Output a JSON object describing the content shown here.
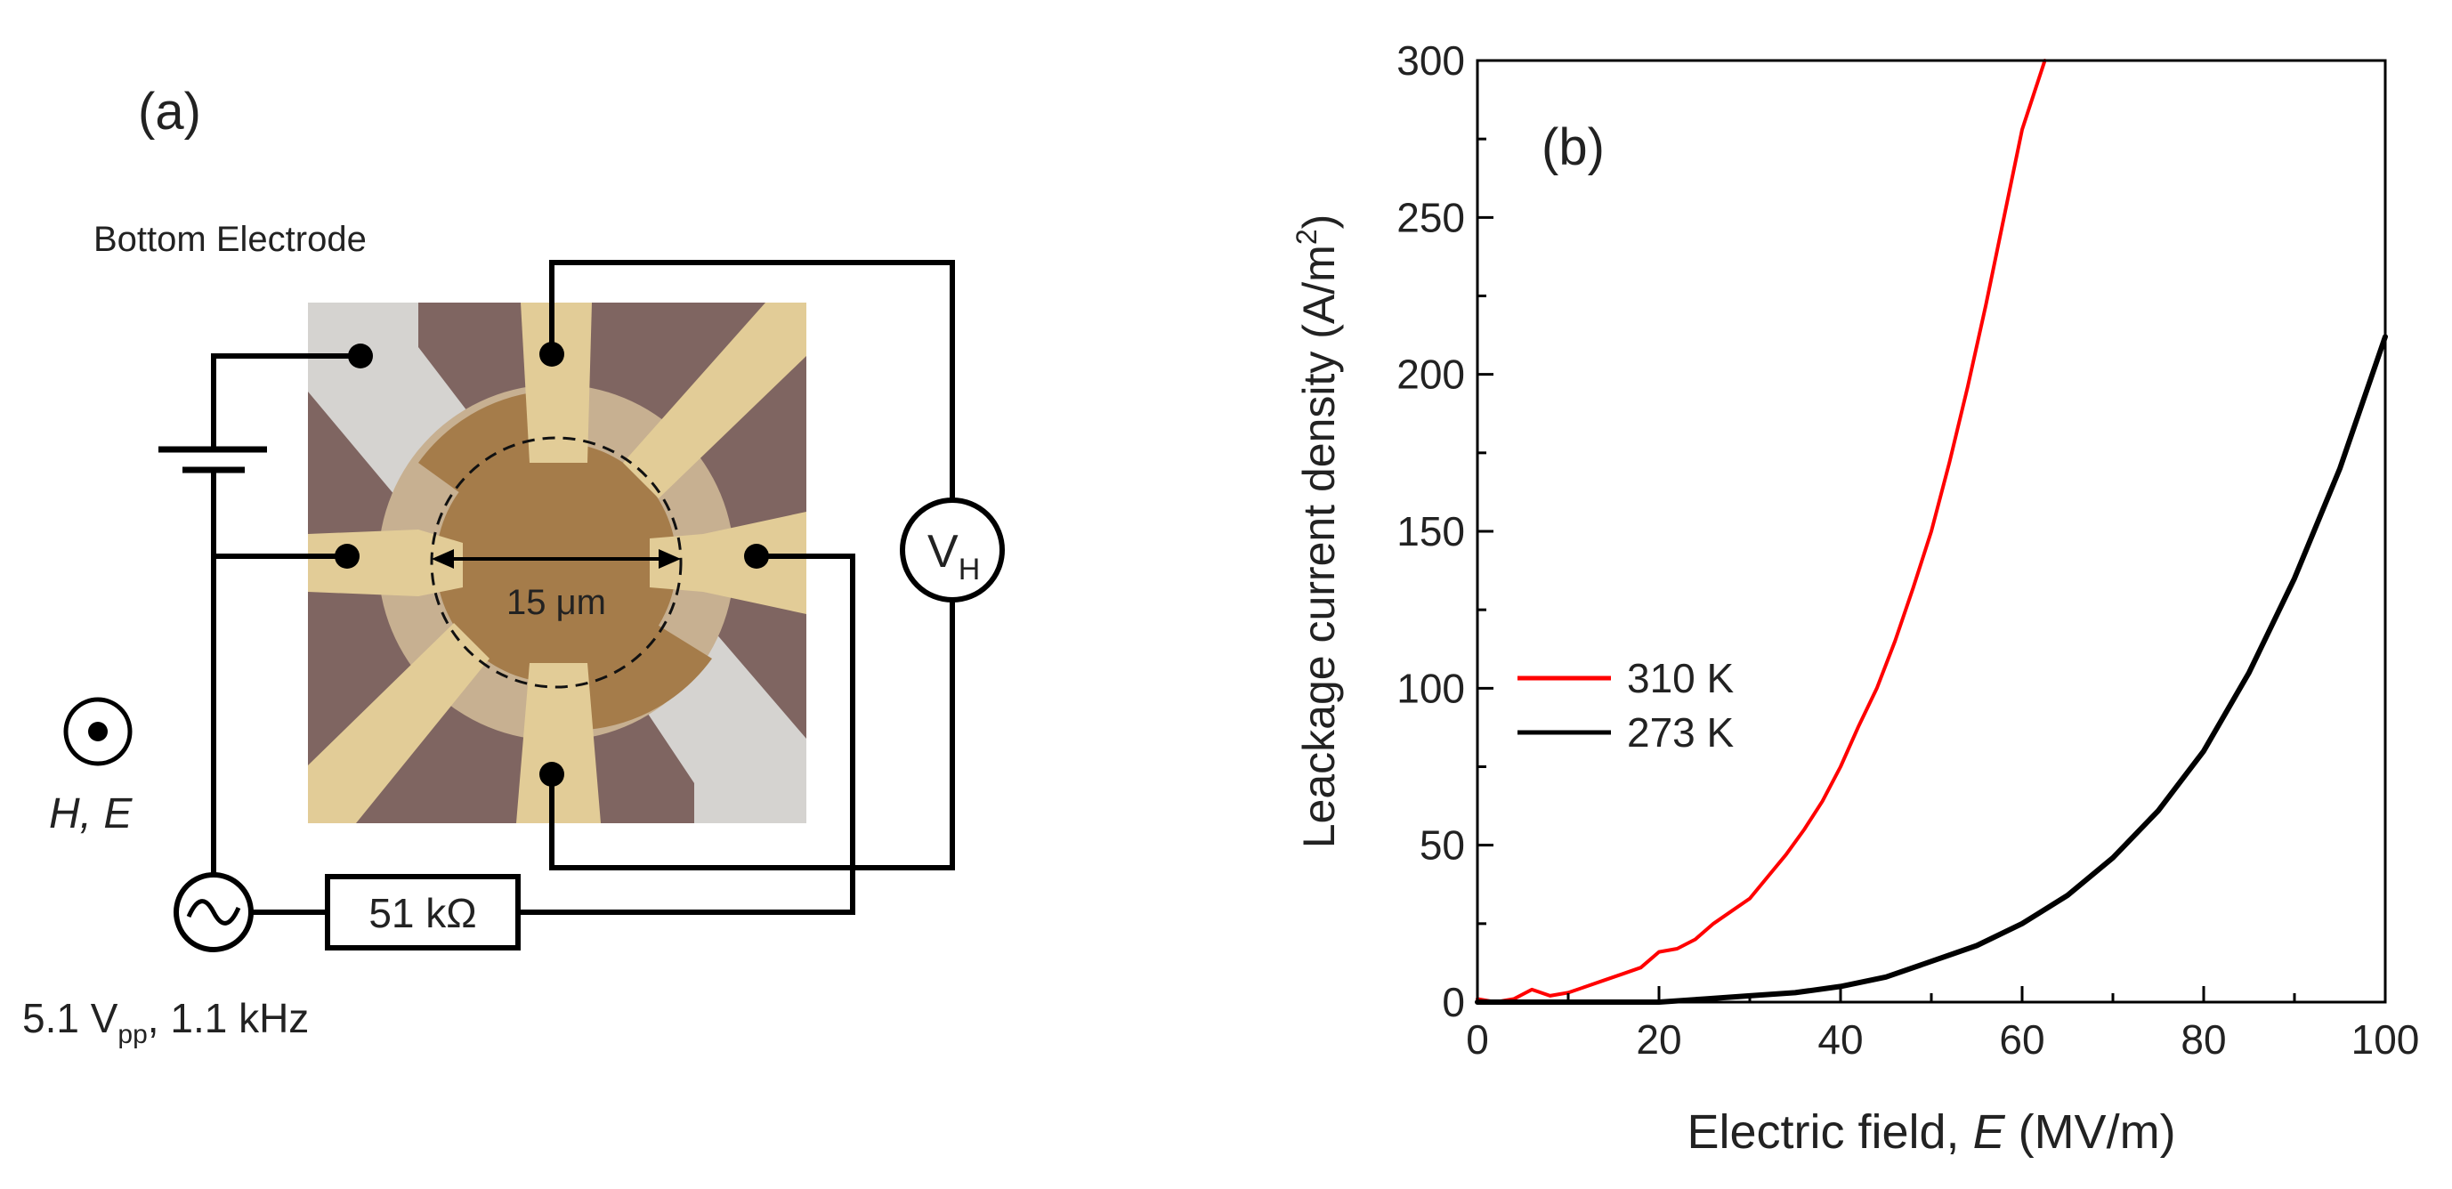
{
  "panel_a": {
    "label": "(a)",
    "bottom_electrode_label": "Bottom Electrode",
    "scale_label": "15 μm",
    "voltmeter_label": "V",
    "voltmeter_subscript": "H",
    "resistor_label": "51 kΩ",
    "field_direction_label": "H, E",
    "source_label_prefix": "5.1 V",
    "source_label_subscript": "pp",
    "source_label_suffix": ", 1.1 kHz"
  },
  "chart_data": {
    "type": "line",
    "panel_label": "(b)",
    "title": "",
    "xlabel_prefix": "Electric field, ",
    "xlabel_symbol": "E",
    "xlabel_suffix": " (MV/m)",
    "ylabel_prefix": "Leackage current density (A/m",
    "ylabel_sup": "2",
    "ylabel_suffix": ")",
    "xlim": [
      0,
      100
    ],
    "ylim": [
      0,
      300
    ],
    "xticks": [
      0,
      20,
      40,
      60,
      80,
      100
    ],
    "yticks": [
      0,
      50,
      100,
      150,
      200,
      250,
      300
    ],
    "xtick_labels": [
      "0",
      "20",
      "40",
      "60",
      "80",
      "100"
    ],
    "ytick_labels": [
      "0",
      "50",
      "100",
      "150",
      "200",
      "250",
      "300"
    ],
    "grid": false,
    "legend_position": "center-left",
    "series": [
      {
        "name": "310 K",
        "color": "#ff0000",
        "x": [
          0,
          2,
          4,
          6,
          8,
          10,
          12,
          14,
          16,
          18,
          20,
          22,
          24,
          26,
          28,
          30,
          32,
          34,
          36,
          38,
          40,
          42,
          44,
          46,
          48,
          50,
          52,
          54,
          56,
          58,
          60,
          62.5
        ],
        "y": [
          1,
          0,
          1,
          4,
          2,
          3,
          5,
          7,
          9,
          11,
          16,
          17,
          20,
          25,
          29,
          33,
          40,
          47,
          55,
          64,
          75,
          88,
          100,
          115,
          132,
          150,
          172,
          196,
          222,
          250,
          278,
          300
        ]
      },
      {
        "name": "273 K",
        "color": "#000000",
        "x": [
          0,
          10,
          20,
          25,
          30,
          35,
          40,
          45,
          50,
          55,
          60,
          65,
          70,
          75,
          80,
          85,
          90,
          95,
          100
        ],
        "y": [
          0,
          0,
          0,
          1,
          2,
          3,
          5,
          8,
          13,
          18,
          25,
          34,
          46,
          61,
          80,
          105,
          135,
          170,
          212
        ]
      }
    ]
  },
  "colors": {
    "photo_background": "#7f6561",
    "gold_pad": "#e2cc97",
    "brown_pad": "#a57c4a",
    "light_pad": "#c7b091",
    "silver_pad": "#d5d3d0",
    "wire": "#000000"
  }
}
